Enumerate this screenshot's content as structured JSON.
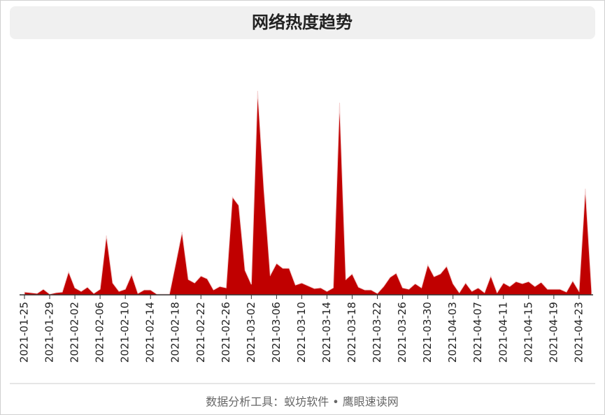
{
  "chart_data": {
    "type": "area",
    "title": "网络热度趋势",
    "footer": "数据分析工具：蚁坊软件 • 鹰眼速读网",
    "color": "#c00000",
    "categories": [
      "2021-01-25",
      null,
      null,
      null,
      "2021-01-29",
      null,
      null,
      null,
      "2021-02-02",
      null,
      null,
      null,
      "2021-02-06",
      null,
      null,
      null,
      "2021-02-10",
      null,
      null,
      null,
      "2021-02-14",
      null,
      null,
      null,
      "2021-02-18",
      null,
      null,
      null,
      "2021-02-22",
      null,
      null,
      null,
      "2021-02-26",
      null,
      null,
      null,
      "2021-03-02",
      null,
      null,
      null,
      "2021-03-06",
      null,
      null,
      null,
      "2021-03-10",
      null,
      null,
      null,
      "2021-03-14",
      null,
      null,
      null,
      "2021-03-18",
      null,
      null,
      null,
      "2021-03-22",
      null,
      null,
      null,
      "2021-03-26",
      null,
      null,
      null,
      "2021-03-30",
      null,
      null,
      null,
      "2021-04-03",
      null,
      null,
      null,
      "2021-04-07",
      null,
      null,
      null,
      "2021-04-11",
      null,
      null,
      null,
      "2021-04-15",
      null,
      null,
      null,
      "2021-04-19",
      null,
      null,
      null,
      "2021-04-23",
      null,
      null
    ],
    "values": [
      4,
      3,
      2,
      8,
      1,
      3,
      4,
      33,
      10,
      5,
      11,
      2,
      8,
      85,
      17,
      5,
      8,
      29,
      2,
      7,
      7,
      1,
      1,
      1,
      45,
      90,
      22,
      17,
      27,
      23,
      7,
      12,
      10,
      140,
      128,
      35,
      15,
      292,
      150,
      28,
      45,
      38,
      38,
      14,
      17,
      13,
      9,
      10,
      5,
      10,
      275,
      22,
      30,
      11,
      7,
      7,
      2,
      12,
      25,
      31,
      10,
      8,
      16,
      10,
      43,
      26,
      30,
      41,
      16,
      3,
      17,
      5,
      10,
      3,
      27,
      3,
      17,
      12,
      19,
      16,
      19,
      12,
      18,
      8,
      8,
      8,
      4,
      20,
      5,
      152,
      5
    ],
    "ylim": [
      0,
      300
    ]
  }
}
